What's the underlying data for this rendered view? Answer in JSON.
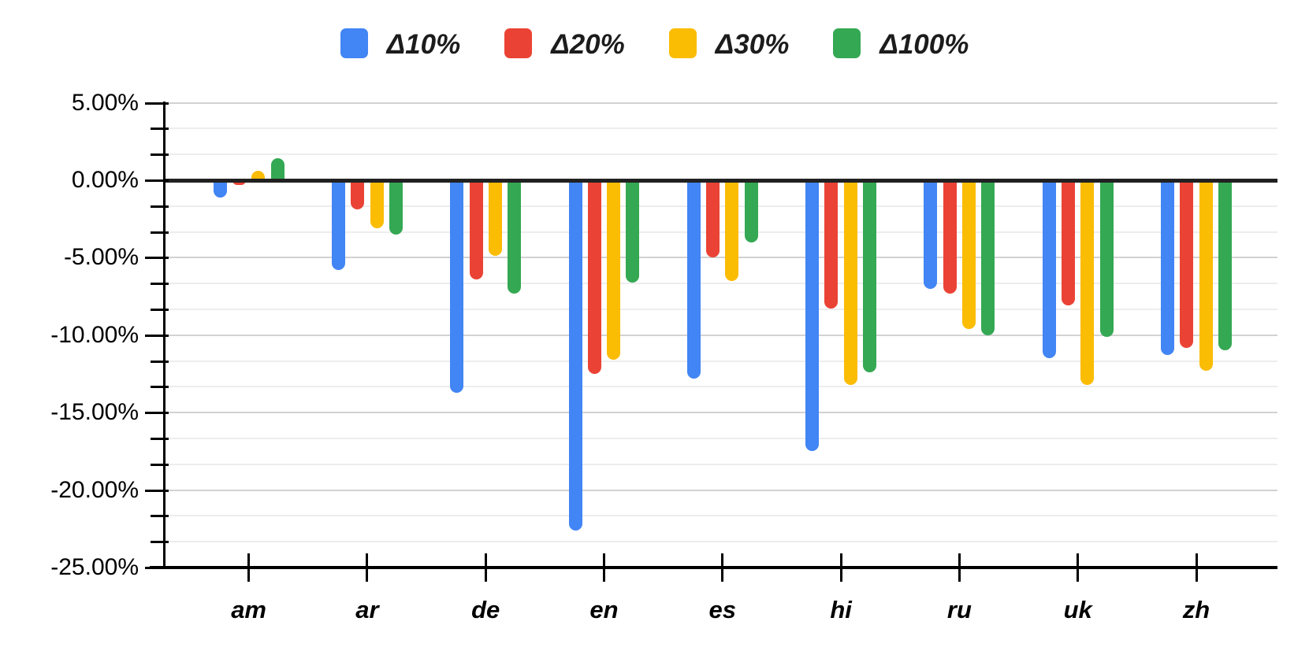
{
  "chart_data": {
    "type": "bar",
    "title": "",
    "categories": [
      "am",
      "ar",
      "de",
      "en",
      "es",
      "hi",
      "ru",
      "uk",
      "zh"
    ],
    "series": [
      {
        "name": "Δ10%",
        "color": "#4285F4",
        "values": [
          -1.1,
          -5.8,
          -13.7,
          -22.6,
          -12.8,
          -17.5,
          -7.0,
          -11.5,
          -11.3
        ]
      },
      {
        "name": "Δ20%",
        "color": "#EA4335",
        "values": [
          -0.3,
          -1.9,
          -6.4,
          -12.5,
          -5.0,
          -8.3,
          -7.3,
          -8.1,
          -10.8
        ]
      },
      {
        "name": "Δ30%",
        "color": "#FBBC04",
        "values": [
          0.6,
          -3.1,
          -4.9,
          -11.6,
          -6.5,
          -13.2,
          -9.6,
          -13.2,
          -12.3
        ]
      },
      {
        "name": "Δ100%",
        "color": "#34A853",
        "values": [
          1.4,
          -3.5,
          -7.3,
          -6.6,
          -4.0,
          -12.4,
          -10.0,
          -10.1,
          -11.0
        ]
      }
    ],
    "xlabel": "",
    "ylabel": "",
    "ylim": [
      -25,
      5
    ],
    "y_axis": {
      "major_tick_labels": [
        "5.00%",
        "0.00%",
        "-5.00%",
        "-10.00%",
        "-15.00%",
        "-20.00%",
        "-25.00%"
      ],
      "major_tick_values": [
        5,
        0,
        -5,
        -10,
        -15,
        -20,
        -25
      ],
      "minor_step_pct": 1.6667,
      "format": "percent"
    },
    "legend_position": "top",
    "grid": "major-and-minor-horizontal",
    "zero_line_color": "#212121",
    "axis_color": "#000000"
  }
}
